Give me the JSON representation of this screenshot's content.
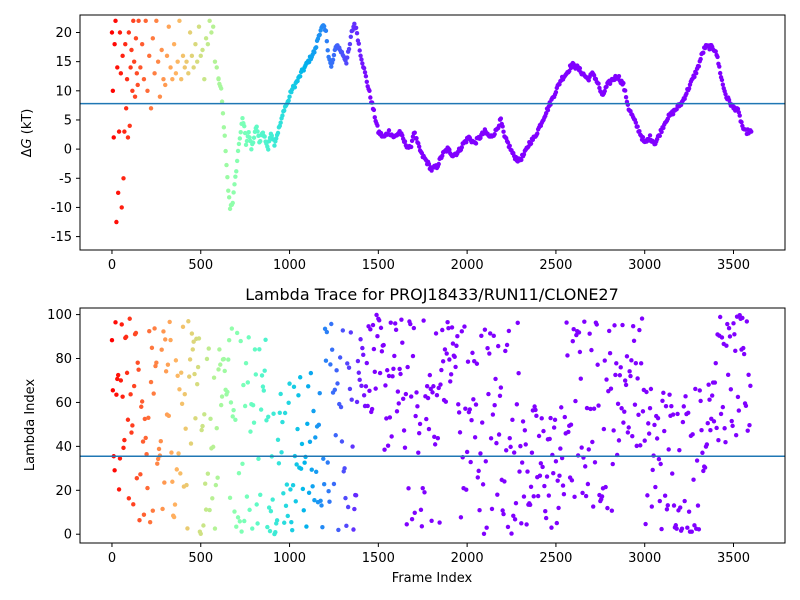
{
  "chart_data": [
    {
      "type": "scatter",
      "title": "",
      "xlabel": "",
      "ylabel_prefix": "Δ",
      "ylabel_italic": "G",
      "ylabel_suffix": " (kT)",
      "xlim": [
        -180,
        3790
      ],
      "ylim": [
        -17.3,
        23
      ],
      "xticks": [
        0,
        500,
        1000,
        1500,
        2000,
        2500,
        3000,
        3500
      ],
      "yticks": [
        -15,
        -10,
        -5,
        0,
        5,
        10,
        15,
        20
      ],
      "hline": 7.8,
      "hline_color": "#1f77b4",
      "grid": false,
      "colormap": "rainbow (reversed by frame index)",
      "x_step": 5,
      "points_early": [
        [
          0,
          20
        ],
        [
          5,
          10
        ],
        [
          10,
          2
        ],
        [
          15,
          18
        ],
        [
          20,
          22
        ],
        [
          25,
          -12.5
        ],
        [
          30,
          14
        ],
        [
          35,
          -7.5
        ],
        [
          40,
          3
        ],
        [
          45,
          20
        ],
        [
          50,
          13
        ],
        [
          55,
          -10
        ],
        [
          60,
          16
        ],
        [
          65,
          -5
        ],
        [
          70,
          3
        ],
        [
          75,
          18
        ],
        [
          80,
          7
        ],
        [
          85,
          12
        ],
        [
          90,
          2
        ],
        [
          95,
          20
        ],
        [
          100,
          4
        ],
        [
          105,
          14
        ],
        [
          110,
          17
        ],
        [
          115,
          10
        ],
        [
          120,
          22
        ],
        [
          125,
          15
        ],
        [
          130,
          9
        ],
        [
          135,
          19
        ],
        [
          140,
          13
        ],
        [
          145,
          11
        ],
        [
          150,
          22
        ],
        [
          160,
          14
        ],
        [
          170,
          18
        ],
        [
          180,
          12
        ],
        [
          190,
          22
        ],
        [
          200,
          10
        ],
        [
          210,
          16
        ],
        [
          220,
          7
        ],
        [
          230,
          19
        ],
        [
          240,
          13
        ],
        [
          250,
          22
        ],
        [
          260,
          15
        ],
        [
          270,
          9
        ],
        [
          280,
          17
        ],
        [
          290,
          12
        ],
        [
          300,
          11
        ],
        [
          310,
          16
        ],
        [
          320,
          21
        ],
        [
          330,
          14
        ],
        [
          340,
          12
        ],
        [
          350,
          18
        ],
        [
          360,
          13
        ],
        [
          370,
          15
        ],
        [
          380,
          22
        ],
        [
          390,
          12
        ],
        [
          400,
          16
        ],
        [
          410,
          14
        ],
        [
          420,
          15
        ],
        [
          430,
          13
        ],
        [
          440,
          20
        ],
        [
          450,
          16
        ],
        [
          460,
          14
        ],
        [
          470,
          18
        ],
        [
          480,
          15
        ],
        [
          490,
          21
        ],
        [
          500,
          16
        ],
        [
          510,
          17
        ],
        [
          520,
          12
        ],
        [
          530,
          19
        ],
        [
          540,
          18
        ],
        [
          550,
          22
        ],
        [
          560,
          20
        ],
        [
          570,
          21
        ],
        [
          580,
          15
        ],
        [
          590,
          14
        ],
        [
          600,
          12
        ]
      ],
      "trace": [
        [
          600,
          12
        ],
        [
          615,
          10
        ],
        [
          625,
          6
        ],
        [
          635,
          2
        ],
        [
          645,
          -3
        ],
        [
          655,
          -7
        ],
        [
          665,
          -10
        ],
        [
          680,
          -9
        ],
        [
          695,
          -5
        ],
        [
          705,
          -2
        ],
        [
          715,
          1
        ],
        [
          725,
          3
        ],
        [
          735,
          5
        ],
        [
          745,
          4
        ],
        [
          755,
          1
        ],
        [
          770,
          3
        ],
        [
          785,
          0
        ],
        [
          800,
          2
        ],
        [
          815,
          4
        ],
        [
          830,
          1
        ],
        [
          845,
          3
        ],
        [
          860,
          2
        ],
        [
          880,
          0
        ],
        [
          895,
          3
        ],
        [
          915,
          1
        ],
        [
          935,
          3
        ],
        [
          955,
          5
        ],
        [
          970,
          7
        ],
        [
          990,
          8
        ],
        [
          1010,
          10
        ],
        [
          1030,
          11
        ],
        [
          1050,
          12
        ],
        [
          1065,
          13
        ],
        [
          1085,
          14
        ],
        [
          1105,
          15
        ],
        [
          1125,
          16
        ],
        [
          1145,
          17
        ],
        [
          1160,
          19
        ],
        [
          1175,
          20.5
        ],
        [
          1190,
          21
        ],
        [
          1205,
          20
        ],
        [
          1220,
          16
        ],
        [
          1235,
          14
        ],
        [
          1250,
          16
        ],
        [
          1265,
          18
        ],
        [
          1285,
          17
        ],
        [
          1305,
          16
        ],
        [
          1320,
          15
        ],
        [
          1335,
          17
        ],
        [
          1350,
          20
        ],
        [
          1365,
          21.5
        ],
        [
          1380,
          20
        ],
        [
          1395,
          17
        ],
        [
          1410,
          15
        ],
        [
          1425,
          13
        ],
        [
          1440,
          11
        ],
        [
          1455,
          9
        ],
        [
          1470,
          7
        ],
        [
          1485,
          5
        ],
        [
          1500,
          3
        ],
        [
          1530,
          2
        ],
        [
          1560,
          3
        ],
        [
          1590,
          2
        ],
        [
          1620,
          3
        ],
        [
          1650,
          1
        ],
        [
          1680,
          0
        ],
        [
          1700,
          3
        ],
        [
          1720,
          1
        ],
        [
          1745,
          -1
        ],
        [
          1770,
          -2
        ],
        [
          1800,
          -3.5
        ],
        [
          1830,
          -3
        ],
        [
          1860,
          -1
        ],
        [
          1890,
          0
        ],
        [
          1920,
          -1
        ],
        [
          1950,
          -0.5
        ],
        [
          1980,
          1
        ],
        [
          2010,
          2
        ],
        [
          2040,
          1
        ],
        [
          2070,
          2
        ],
        [
          2100,
          3
        ],
        [
          2130,
          2
        ],
        [
          2160,
          3
        ],
        [
          2190,
          5
        ],
        [
          2210,
          2
        ],
        [
          2230,
          1
        ],
        [
          2260,
          -1
        ],
        [
          2290,
          -2
        ],
        [
          2320,
          -1
        ],
        [
          2350,
          1
        ],
        [
          2380,
          2
        ],
        [
          2410,
          4
        ],
        [
          2440,
          6
        ],
        [
          2470,
          8
        ],
        [
          2500,
          10
        ],
        [
          2530,
          12
        ],
        [
          2560,
          13
        ],
        [
          2590,
          14.5
        ],
        [
          2620,
          14
        ],
        [
          2650,
          13
        ],
        [
          2680,
          12
        ],
        [
          2710,
          13
        ],
        [
          2740,
          11
        ],
        [
          2760,
          9
        ],
        [
          2790,
          11
        ],
        [
          2820,
          12
        ],
        [
          2850,
          12.5
        ],
        [
          2880,
          11
        ],
        [
          2910,
          7
        ],
        [
          2940,
          5
        ],
        [
          2970,
          3
        ],
        [
          3000,
          1
        ],
        [
          3030,
          2
        ],
        [
          3060,
          1
        ],
        [
          3090,
          3
        ],
        [
          3120,
          5
        ],
        [
          3150,
          6
        ],
        [
          3180,
          7
        ],
        [
          3210,
          8
        ],
        [
          3240,
          10
        ],
        [
          3270,
          12
        ],
        [
          3300,
          14
        ],
        [
          3320,
          16
        ],
        [
          3340,
          17.5
        ],
        [
          3370,
          17.5
        ],
        [
          3400,
          17
        ],
        [
          3420,
          14
        ],
        [
          3440,
          11
        ],
        [
          3460,
          9
        ],
        [
          3480,
          8
        ],
        [
          3500,
          7
        ],
        [
          3520,
          7
        ],
        [
          3540,
          5
        ],
        [
          3560,
          3
        ],
        [
          3580,
          3
        ],
        [
          3600,
          3
        ]
      ]
    },
    {
      "type": "scatter",
      "title": "Lambda Trace for PROJ18433/RUN11/CLONE27",
      "xlabel": "Frame Index",
      "ylabel": "Lambda Index",
      "xlim": [
        -180,
        3790
      ],
      "ylim": [
        -4,
        103
      ],
      "xticks": [
        0,
        500,
        1000,
        1500,
        2000,
        2500,
        3000,
        3500
      ],
      "yticks": [
        0,
        20,
        40,
        60,
        80,
        100
      ],
      "hline": 35.5,
      "hline_color": "#1f77b4",
      "grid": false,
      "colormap": "rainbow (reversed by frame index)",
      "x_step": 5,
      "segments": [
        {
          "x_start": 0,
          "x_end": 600,
          "y_min": 0,
          "y_max": 100
        },
        {
          "x_start": 600,
          "x_end": 660,
          "y_min": 50,
          "y_max": 100
        },
        {
          "x_start": 660,
          "x_end": 900,
          "y_min": 0,
          "y_max": 100
        },
        {
          "x_start": 900,
          "x_end": 1200,
          "y_min": 0,
          "y_max": 75
        },
        {
          "x_start": 1200,
          "x_end": 1380,
          "y_min": 0,
          "y_max": 100
        },
        {
          "x_start": 1380,
          "x_end": 1500,
          "y_min": 55,
          "y_max": 100
        },
        {
          "x_start": 1500,
          "x_end": 1650,
          "y_min": 35,
          "y_max": 100
        },
        {
          "x_start": 1650,
          "x_end": 1850,
          "y_min": 0,
          "y_max": 100
        },
        {
          "x_start": 1850,
          "x_end": 1950,
          "y_min": 60,
          "y_max": 100
        },
        {
          "x_start": 1950,
          "x_end": 2300,
          "y_min": 0,
          "y_max": 100
        },
        {
          "x_start": 2300,
          "x_end": 2550,
          "y_min": 0,
          "y_max": 60
        },
        {
          "x_start": 2550,
          "x_end": 2850,
          "y_min": 10,
          "y_max": 100
        },
        {
          "x_start": 2850,
          "x_end": 3000,
          "y_min": 40,
          "y_max": 100
        },
        {
          "x_start": 3000,
          "x_end": 3350,
          "y_min": 0,
          "y_max": 70
        },
        {
          "x_start": 3350,
          "x_end": 3600,
          "y_min": 40,
          "y_max": 100
        }
      ]
    }
  ]
}
